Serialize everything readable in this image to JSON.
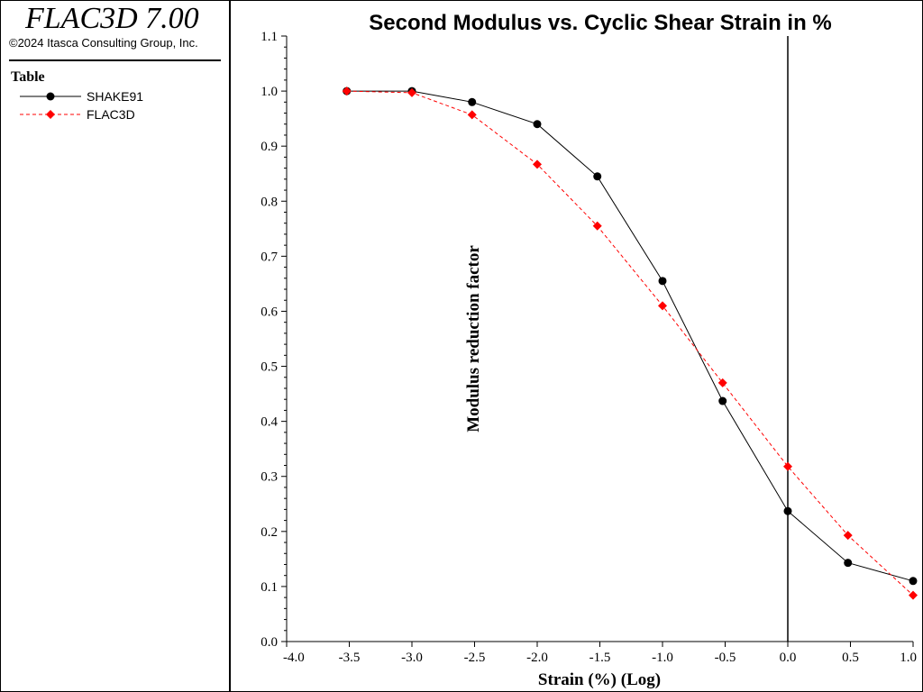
{
  "app": {
    "title": "FLAC3D 7.00",
    "copyright": "©2024 Itasca Consulting Group, Inc."
  },
  "legend": {
    "title": "Table"
  },
  "colors": {
    "shake91": "#000000",
    "flac3d": "#ff0000"
  },
  "chart_data": {
    "type": "line",
    "title": "Second Modulus vs. Cyclic Shear Strain in %",
    "xlabel": "Strain (%) (Log)",
    "ylabel": "Modulus reduction factor",
    "xscale": "log",
    "xlim": [
      -4.0,
      1.0
    ],
    "ylim": [
      0.0,
      1.1
    ],
    "x_ticks": [
      "-4.0",
      "-3.5",
      "-3.0",
      "-2.5",
      "-2.0",
      "-1.5",
      "-1.0",
      "-0.5",
      "0.0",
      "0.5",
      "1.0"
    ],
    "y_ticks": [
      "0.0",
      "0.1",
      "0.2",
      "0.3",
      "0.4",
      "0.5",
      "0.6",
      "0.7",
      "0.8",
      "0.9",
      "1.0",
      "1.1"
    ],
    "reference_line_x": 0.0,
    "grid": false,
    "legend_position": "left panel",
    "series": [
      {
        "name": "SHAKE91",
        "color": "#000000",
        "line_style": "solid",
        "marker": "circle",
        "x": [
          -3.52,
          -3.0,
          -2.52,
          -2.0,
          -1.52,
          -1.0,
          -0.52,
          0.0,
          0.48,
          1.0
        ],
        "y": [
          1.0,
          1.0,
          0.98,
          0.94,
          0.845,
          0.655,
          0.437,
          0.237,
          0.143,
          0.11
        ]
      },
      {
        "name": "FLAC3D",
        "color": "#ff0000",
        "line_style": "dashed",
        "marker": "diamond",
        "x": [
          -3.52,
          -3.0,
          -2.52,
          -2.0,
          -1.52,
          -1.0,
          -0.52,
          0.0,
          0.48,
          1.0
        ],
        "y": [
          1.0,
          0.997,
          0.957,
          0.867,
          0.755,
          0.61,
          0.47,
          0.318,
          0.193,
          0.084
        ]
      }
    ]
  }
}
